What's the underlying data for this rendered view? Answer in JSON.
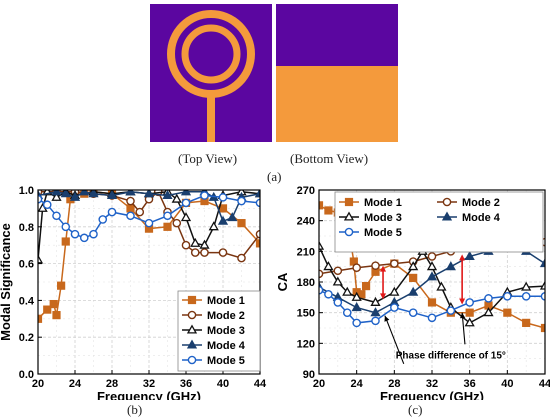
{
  "figure": {
    "top_view_caption": "(Top View)",
    "bottom_view_caption": "(Bottom View)",
    "caption_a": "(a)",
    "caption_b": "(b)",
    "caption_c": "(c)",
    "colors": {
      "substrate": "#5b06a0",
      "copper": "#f49a3c"
    }
  },
  "chart_data": [
    {
      "type": "line",
      "title": "",
      "xlabel": "Frequency (GHz)",
      "ylabel": "Modal Significance",
      "xlim": [
        20,
        44
      ],
      "ylim": [
        0,
        1.0
      ],
      "xticks": [
        20,
        24,
        28,
        32,
        36,
        40,
        44
      ],
      "yticks": [
        0.0,
        0.2,
        0.4,
        0.6,
        0.8,
        1.0
      ],
      "xtick_labels": [
        "20",
        "24",
        "28",
        "32",
        "36",
        "40",
        "44"
      ],
      "ytick_labels": [
        "0.0",
        "0.2",
        "0.4",
        "0.6",
        "0.8",
        "1.0"
      ],
      "grid": true,
      "legend": "bottom-right",
      "series": [
        {
          "name": "Mode 1",
          "color": "#c8681c",
          "marker": "square-filled",
          "x": [
            20,
            21,
            21.7,
            22,
            22.5,
            23,
            23.5,
            24,
            25,
            26,
            28,
            30,
            32,
            34,
            36,
            38,
            40,
            42,
            44
          ],
          "y": [
            0.3,
            0.35,
            0.38,
            0.32,
            0.48,
            0.72,
            0.95,
            0.99,
            0.98,
            0.99,
            0.98,
            0.9,
            0.79,
            0.8,
            0.93,
            0.94,
            0.9,
            0.82,
            0.71
          ]
        },
        {
          "name": "Mode 2",
          "color": "#7a3510",
          "marker": "circle-open",
          "x": [
            20,
            22,
            24,
            26,
            28,
            30,
            31,
            32,
            33,
            34,
            35,
            36,
            37,
            38,
            40,
            42,
            44
          ],
          "y": [
            0.99,
            0.99,
            0.99,
            0.98,
            0.97,
            0.94,
            0.88,
            0.95,
            0.99,
            0.88,
            0.82,
            0.7,
            0.66,
            0.66,
            0.66,
            0.63,
            0.76
          ]
        },
        {
          "name": "Mode 3",
          "color": "#111111",
          "marker": "triangle-open",
          "x": [
            20,
            20.5,
            21,
            22,
            23,
            24,
            26,
            28,
            30,
            32,
            34,
            35,
            36,
            37,
            38,
            39,
            40,
            42,
            44
          ],
          "y": [
            0.62,
            0.9,
            0.99,
            0.96,
            0.99,
            0.97,
            0.99,
            0.98,
            0.99,
            0.98,
            0.99,
            0.95,
            0.85,
            0.71,
            0.7,
            0.8,
            0.97,
            0.99,
            0.98
          ]
        },
        {
          "name": "Mode 4",
          "color": "#1a3f6e",
          "marker": "triangle-filled",
          "x": [
            20,
            22,
            23,
            24,
            25,
            26,
            28,
            30,
            32,
            34,
            36,
            38,
            39,
            40,
            41,
            42,
            44
          ],
          "y": [
            0.97,
            0.99,
            0.98,
            0.96,
            0.99,
            0.98,
            0.97,
            0.99,
            0.98,
            0.97,
            0.99,
            0.99,
            0.96,
            0.83,
            0.85,
            0.96,
            0.98
          ]
        },
        {
          "name": "Mode 5",
          "color": "#1f62c8",
          "marker": "circle-open",
          "x": [
            20,
            21,
            22,
            23,
            24,
            25,
            26,
            27,
            28,
            30,
            32,
            34,
            36,
            38,
            40,
            42,
            44
          ],
          "y": [
            0.95,
            0.92,
            0.86,
            0.8,
            0.76,
            0.74,
            0.76,
            0.84,
            0.88,
            0.86,
            0.82,
            0.86,
            0.93,
            0.97,
            0.96,
            0.94,
            0.93
          ]
        }
      ]
    },
    {
      "type": "line",
      "title": "",
      "xlabel": "Frequency (GHz)",
      "ylabel": "CA",
      "xlim": [
        20,
        44
      ],
      "ylim": [
        90,
        270
      ],
      "xticks": [
        20,
        24,
        28,
        32,
        36,
        40,
        44
      ],
      "yticks": [
        90,
        120,
        150,
        180,
        210,
        240,
        270
      ],
      "xtick_labels": [
        "20",
        "24",
        "28",
        "32",
        "36",
        "40",
        "44"
      ],
      "ytick_labels": [
        "90",
        "120",
        "150",
        "180",
        "210",
        "240",
        "270"
      ],
      "grid": true,
      "legend": "top",
      "annotations": [
        {
          "text": "Phase difference of 15°",
          "x": 34,
          "y": 105
        }
      ],
      "series": [
        {
          "name": "Mode 1",
          "color": "#c8681c",
          "marker": "square-filled",
          "x": [
            20,
            21,
            22,
            23,
            23.7,
            24,
            24.5,
            25,
            26,
            28,
            30,
            32,
            34,
            36,
            38,
            40,
            42,
            44
          ],
          "y": [
            255,
            250,
            248,
            240,
            200,
            170,
            168,
            176,
            190,
            198,
            184,
            160,
            150,
            150,
            157,
            150,
            140,
            135
          ]
        },
        {
          "name": "Mode 2",
          "color": "#7a3510",
          "marker": "circle-open",
          "x": [
            20,
            22,
            24,
            26,
            28,
            30,
            32,
            34,
            36,
            38,
            40,
            42,
            44
          ],
          "y": [
            188,
            191,
            194,
            196,
            198,
            200,
            205,
            210,
            215,
            220,
            222,
            221,
            219
          ]
        },
        {
          "name": "Mode 3",
          "color": "#111111",
          "marker": "triangle-open",
          "x": [
            20,
            21,
            22,
            23,
            24,
            26,
            28,
            30,
            31,
            32,
            33,
            34,
            36,
            38,
            40,
            42,
            44
          ],
          "y": [
            215,
            195,
            180,
            170,
            165,
            160,
            170,
            195,
            210,
            195,
            175,
            155,
            140,
            150,
            170,
            175,
            176
          ]
        },
        {
          "name": "Mode 4",
          "color": "#1a3f6e",
          "marker": "triangle-filled",
          "x": [
            20,
            22,
            24,
            26,
            28,
            30,
            32,
            34,
            36,
            38,
            40,
            42,
            44
          ],
          "y": [
            175,
            165,
            155,
            150,
            160,
            170,
            185,
            195,
            205,
            210,
            220,
            210,
            198
          ]
        },
        {
          "name": "Mode 5",
          "color": "#1f62c8",
          "marker": "circle-open",
          "x": [
            20,
            21,
            22,
            23,
            24,
            26,
            28,
            30,
            32,
            34,
            36,
            38,
            40,
            42,
            44
          ],
          "y": [
            172,
            168,
            160,
            150,
            140,
            142,
            155,
            150,
            145,
            152,
            160,
            164,
            166,
            166,
            166
          ]
        }
      ]
    }
  ]
}
